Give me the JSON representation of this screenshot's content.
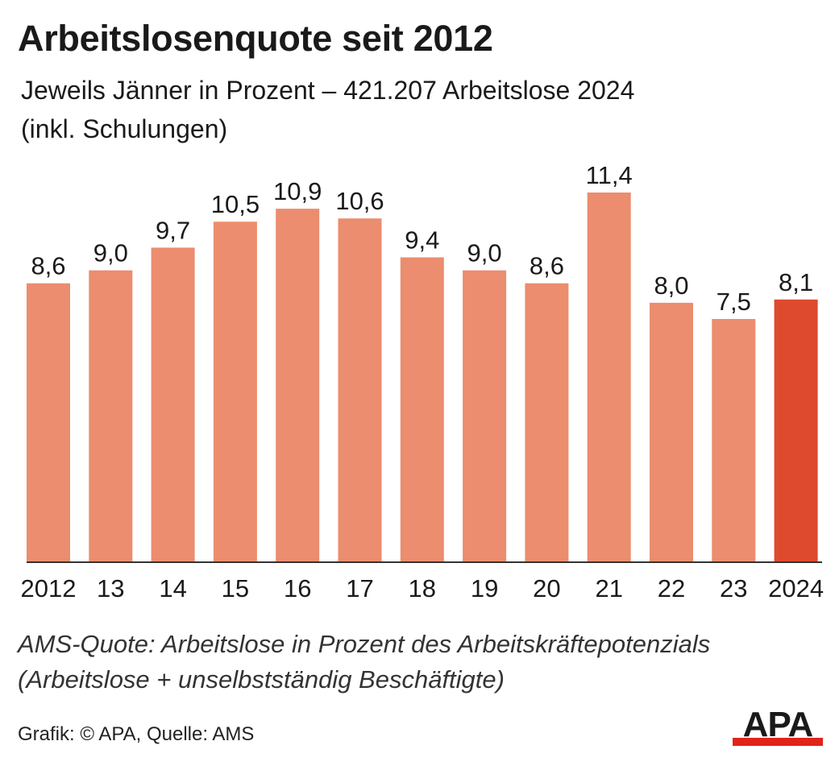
{
  "title": "Arbeitslosenquote seit 2012",
  "subtitle_line1": "Jeweils Jänner in Prozent – 421.207 Arbeitslose 2024",
  "subtitle_line2": "(inkl. Schulungen)",
  "note_line1": "AMS-Quote: Arbeitslose in Prozent des Arbeitskräftepotenzials",
  "note_line2": "(Arbeitslose + unselbstständig Beschäftigte)",
  "source": "Grafik: © APA, Quelle: AMS",
  "logo_text": "APA",
  "colors": {
    "bar": "#eb8d6e",
    "highlight": "#dd4a2e",
    "axis": "#333333",
    "text": "#1a1a1a",
    "logo": "#1a1a1a",
    "logo_accent": "#e2231a"
  },
  "chart_data": {
    "type": "bar",
    "title": "Arbeitslosenquote seit 2012",
    "categories": [
      "2012",
      "13",
      "14",
      "15",
      "16",
      "17",
      "18",
      "19",
      "20",
      "21",
      "22",
      "23",
      "2024"
    ],
    "values": [
      8.6,
      9.0,
      9.7,
      10.5,
      10.9,
      10.6,
      9.4,
      9.0,
      8.6,
      11.4,
      8.0,
      7.5,
      8.1
    ],
    "value_labels": [
      "8,6",
      "9,0",
      "9,7",
      "10,5",
      "10,9",
      "10,6",
      "9,4",
      "9,0",
      "8,6",
      "11,4",
      "8,0",
      "7,5",
      "8,1"
    ],
    "highlight_index": 12,
    "ylim": [
      0,
      11.4
    ],
    "grid": false,
    "legend": "none"
  }
}
